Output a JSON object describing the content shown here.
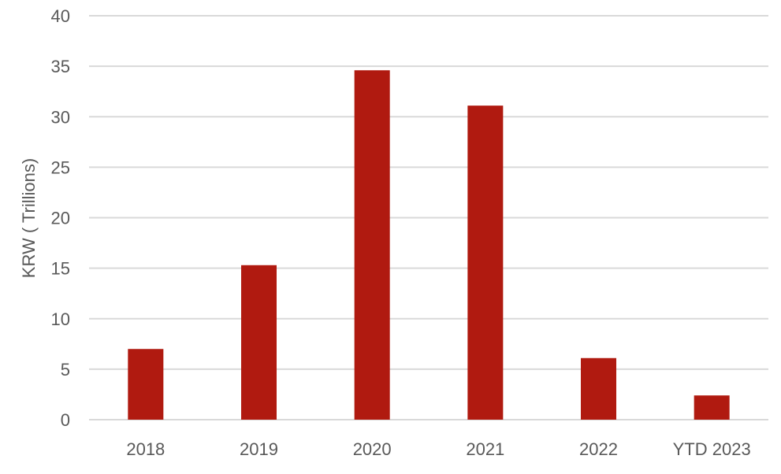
{
  "chart_data": {
    "type": "bar",
    "categories": [
      "2018",
      "2019",
      "2020",
      "2021",
      "2022",
      "YTD 2023"
    ],
    "series": [
      {
        "values": [
          7.0,
          15.3,
          34.6,
          31.1,
          6.1,
          2.4
        ]
      }
    ],
    "title": "",
    "xlabel": "",
    "ylabel": "KRW ( Trillions)",
    "ylim": [
      0,
      40
    ],
    "yticks": [
      0,
      5,
      10,
      15,
      20,
      25,
      30,
      35,
      40
    ],
    "grid": "horizontal",
    "legend": "none",
    "bar_color": "#b01a10",
    "grid_color": "#d9d9d9",
    "text_color": "#595959"
  }
}
